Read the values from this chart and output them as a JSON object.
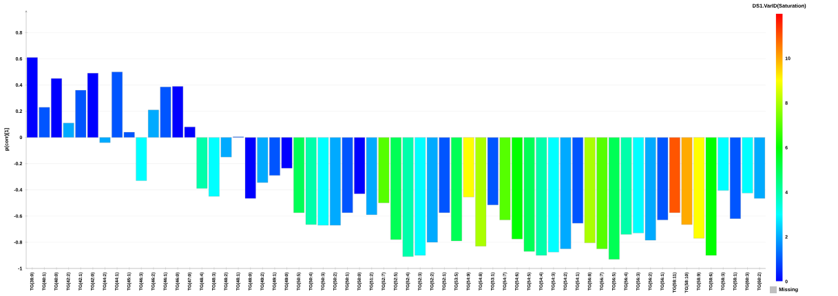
{
  "chart_data": {
    "type": "bar",
    "ylabel": "p(corr)[1]",
    "clabel": "DS1.VarID(Saturation)",
    "categories": [
      "TG(38:0)",
      "TG(40:1)",
      "TG(40:0)",
      "TG(42:2)",
      "TG(42:1)",
      "TG(42:0)",
      "TG(44:2)",
      "TG(44:1)",
      "TG(45:1)",
      "TG(46:3)",
      "TG(46:2)",
      "TG(46:1)",
      "TG(46:0)",
      "TG(47:0)",
      "TG(48:4)",
      "TG(48:3)",
      "TG(48:2)",
      "TG(48:1)",
      "TG(48:0)",
      "TG(49:2)",
      "TG(49:1)",
      "TG(49:0)",
      "TG(50:5)",
      "TG(50:4)",
      "TG(50:3)",
      "TG(50:2)",
      "TG(50:1)",
      "TG(50:0)",
      "TG(51:2)",
      "TG(52:7)",
      "TG(52:5)",
      "TG(52:4)",
      "TG(52:3)",
      "TG(52:2)",
      "TG(52:1)",
      "TG(53:5)",
      "TG(54:9)",
      "TG(54:8)",
      "TG(53:1)",
      "TG(54:7)",
      "TG(54:6)",
      "TG(54:5)",
      "TG(54:4)",
      "TG(54:3)",
      "TG(54:2)",
      "TG(54:1)",
      "TG(56:8)",
      "TG(56:7)",
      "TG(56:5)",
      "TG(56:4)",
      "TG(56:3)",
      "TG(56:2)",
      "TG(56:1)",
      "TG(58:11)",
      "TG(58:10)",
      "TG(58:9)",
      "TG(58:6)",
      "TG(58:3)",
      "TG(58:1)",
      "TG(60:3)",
      "TG(60:2)"
    ],
    "values": [
      0.61,
      0.23,
      0.45,
      0.11,
      0.36,
      0.49,
      -0.04,
      0.5,
      0.04,
      -0.33,
      0.21,
      0.385,
      0.39,
      0.08,
      -0.39,
      -0.45,
      -0.15,
      0.005,
      -0.465,
      -0.345,
      -0.29,
      -0.235,
      -0.575,
      -0.665,
      -0.67,
      -0.67,
      -0.575,
      -0.43,
      -0.59,
      -0.5,
      -0.78,
      -0.91,
      -0.9,
      -0.8,
      -0.575,
      -0.79,
      -0.455,
      -0.83,
      -0.515,
      -0.63,
      -0.775,
      -0.87,
      -0.9,
      -0.875,
      -0.85,
      -0.655,
      -0.805,
      -0.85,
      -0.93,
      -0.74,
      -0.73,
      -0.785,
      -0.63,
      -0.575,
      -0.665,
      -0.77,
      -0.9,
      -0.405,
      -0.62,
      -0.425,
      -0.465
    ],
    "cvalues": [
      0,
      1,
      0,
      2,
      1,
      0,
      2,
      1,
      1,
      3,
      2,
      1,
      0,
      0,
      4,
      3,
      2,
      1,
      0,
      2,
      1,
      0,
      5,
      4,
      3,
      2,
      1,
      0,
      2,
      7,
      5,
      4,
      3,
      2,
      1,
      5,
      9,
      8,
      1,
      7,
      6,
      5,
      4,
      3,
      2,
      1,
      8,
      7,
      5,
      4,
      3,
      2,
      1,
      11,
      10,
      9,
      6,
      3,
      1,
      3,
      2
    ],
    "clim": [
      0,
      12
    ],
    "cticks": [
      0,
      2,
      4,
      6,
      8,
      10
    ],
    "ylim": [
      -1,
      0.97
    ],
    "yticks": [
      -1,
      -0.8,
      -0.6,
      -0.4,
      -0.2,
      0,
      0.2,
      0.4,
      0.6,
      0.8
    ],
    "grid": "y",
    "annotations": [
      "Missing"
    ]
  }
}
